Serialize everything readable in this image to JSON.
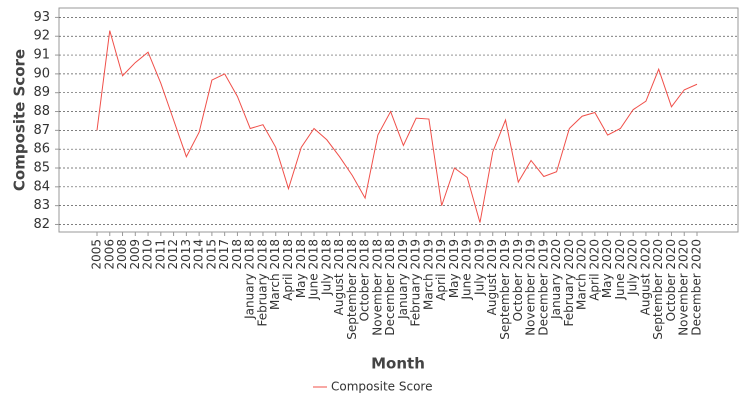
{
  "chart_data": {
    "type": "line",
    "x_label": "Month",
    "y_label": "Composite Score",
    "categories": [
      "2005",
      "2006",
      "2008",
      "2009",
      "2010",
      "2011",
      "2012",
      "2013",
      "2014",
      "2015",
      "2017",
      "2018",
      "January 2018",
      "February 2018",
      "March 2018",
      "April 2018",
      "May 2018",
      "June 2018",
      "July 2018",
      "August 2018",
      "September 2018",
      "October 2018",
      "November 2018",
      "December 2018",
      "January 2019",
      "February 2019",
      "March 2019",
      "April 2019",
      "May 2019",
      "June 2019",
      "July 2019",
      "August 2019",
      "September 2019",
      "October 2019",
      "November 2019",
      "December 2019",
      "January 2020",
      "February 2020",
      "March 2020",
      "April 2020",
      "May 2020",
      "June 2020",
      "July 2020",
      "August 2020",
      "September 2020",
      "October 2020",
      "November 2020",
      "December 2020"
    ],
    "series": [
      {
        "name": "Composite Score",
        "color": "#f0504a",
        "values": [
          87.0,
          92.3,
          89.9,
          90.6,
          91.15,
          89.5,
          87.55,
          85.6,
          86.9,
          89.67,
          90.0,
          88.8,
          87.1,
          87.3,
          86.1,
          83.9,
          86.1,
          87.1,
          86.5,
          85.6,
          84.6,
          83.4,
          86.75,
          88.0,
          86.2,
          87.65,
          87.6,
          83.0,
          85.0,
          84.5,
          82.1,
          85.85,
          87.55,
          84.25,
          85.4,
          84.55,
          84.8,
          87.1,
          87.75,
          87.95,
          86.75,
          87.1,
          88.1,
          88.55,
          90.25,
          88.25,
          89.15,
          89.45
        ]
      }
    ],
    "ylim": [
      81.6,
      93.5
    ],
    "yticks": [
      82,
      83,
      84,
      85,
      86,
      87,
      88,
      89,
      90,
      91,
      92,
      93
    ],
    "grid": true
  }
}
